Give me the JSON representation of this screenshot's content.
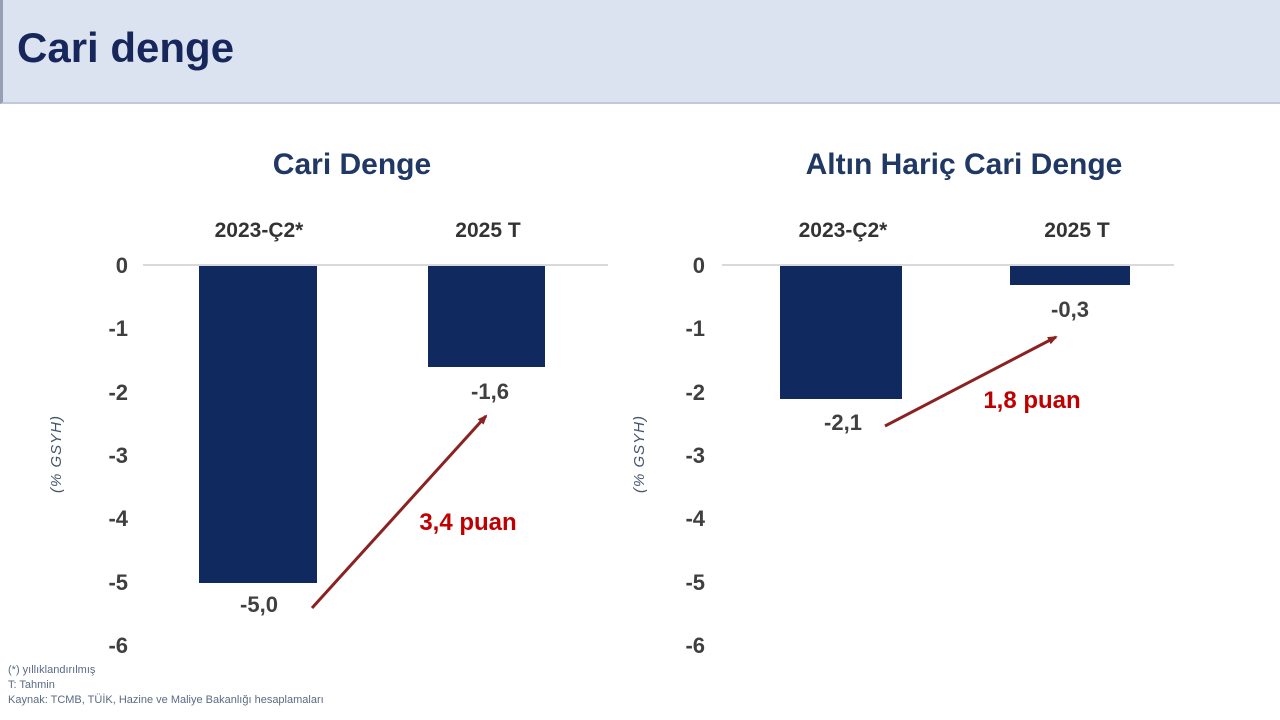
{
  "header": {
    "title": "Cari denge"
  },
  "colors": {
    "bar_navy": "#10295f",
    "accent_red": "#c00000",
    "arrow_red": "#8b2222",
    "title_navy": "#1f3864",
    "header_bg": "#dce3f0"
  },
  "chart_data": [
    {
      "type": "bar",
      "title": "Cari Denge",
      "categories": [
        "2023-Ç2*",
        "2025 T"
      ],
      "values": [
        -5.0,
        -1.6
      ],
      "value_labels": [
        "-5,0",
        "-1,6"
      ],
      "ylabel": "(% GSYH)",
      "ylim": [
        -6,
        0
      ],
      "yticks": [
        0,
        -1,
        -2,
        -3,
        -4,
        -5,
        -6
      ],
      "grid": false,
      "annotation": {
        "text": "3,4 puan",
        "shape": "arrow-up-right"
      }
    },
    {
      "type": "bar",
      "title": "Altın Hariç Cari Denge",
      "categories": [
        "2023-Ç2*",
        "2025 T"
      ],
      "values": [
        -2.1,
        -0.3
      ],
      "value_labels": [
        "-2,1",
        "-0,3"
      ],
      "ylabel": "(% GSYH)",
      "ylim": [
        -6,
        0
      ],
      "yticks": [
        0,
        -1,
        -2,
        -3,
        -4,
        -5,
        -6
      ],
      "grid": false,
      "annotation": {
        "text": "1,8 puan",
        "shape": "arrow-up-right"
      }
    }
  ],
  "footer": {
    "line1": "(*) yıllıklandırılmış",
    "line2": "T: Tahmin",
    "line3": "Kaynak: TCMB, TÜİK, Hazine ve Maliye Bakanlığı hesaplamaları"
  }
}
